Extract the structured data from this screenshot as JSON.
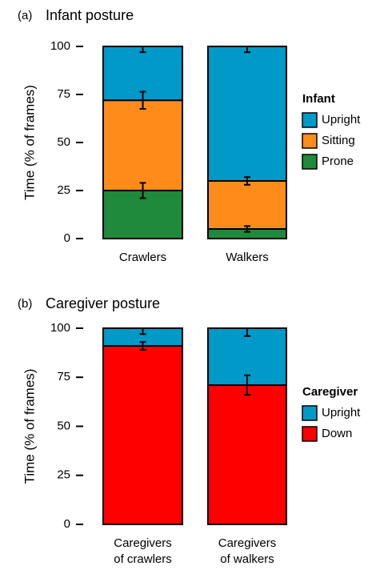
{
  "chart_data": [
    {
      "type": "stacked-bar",
      "panel": "(a)",
      "title": "Infant posture",
      "ylabel": "Time (% of frames)",
      "categories": [
        [
          "Crawlers"
        ],
        [
          "Walkers"
        ]
      ],
      "legend_title": "Infant",
      "series": [
        {
          "name": "Prone",
          "color": "#1f8a3b",
          "values": [
            25,
            5
          ],
          "errors": [
            4,
            1.5
          ]
        },
        {
          "name": "Sitting",
          "color": "#ff8c1a",
          "values": [
            47,
            25
          ],
          "errors": [
            4.5,
            2
          ]
        },
        {
          "name": "Upright",
          "color": "#0099c8",
          "values": [
            28,
            70
          ],
          "errors": [
            3,
            3
          ]
        }
      ],
      "ylim": [
        0,
        100
      ],
      "yticks": [
        0,
        25,
        50,
        75,
        100
      ]
    },
    {
      "type": "stacked-bar",
      "panel": "(b)",
      "title": "Caregiver posture",
      "ylabel": "Time (% of frames)",
      "categories": [
        [
          "Caregivers",
          "of crawlers"
        ],
        [
          "Caregivers",
          "of walkers"
        ]
      ],
      "legend_title": "Caregiver",
      "series": [
        {
          "name": "Down",
          "color": "#ff0000",
          "values": [
            91,
            71
          ],
          "errors": [
            2,
            5
          ]
        },
        {
          "name": "Upright",
          "color": "#0099c8",
          "values": [
            9,
            29
          ],
          "errors": [
            3,
            4
          ]
        }
      ],
      "ylim": [
        0,
        100
      ],
      "yticks": [
        0,
        25,
        50,
        75,
        100
      ]
    }
  ]
}
